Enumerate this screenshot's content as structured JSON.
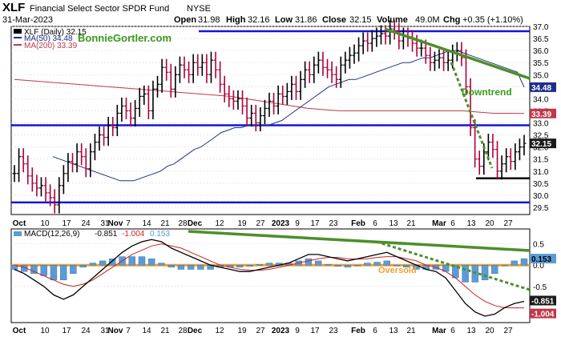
{
  "header": {
    "symbol": "XLF",
    "fund_name": "Financial Select Sector SPDR Fund",
    "exchange": "NYSE",
    "date": "31-Mar-2023",
    "open_label": "Open",
    "open": "31.98",
    "high_label": "High",
    "high": "32.16",
    "low_label": "Low",
    "low": "31.86",
    "close_label": "Close",
    "close": "32.15",
    "volume_label": "Volume",
    "volume": "49.0M",
    "chg_label": "Chg",
    "chg": "+0.35 (+1.10%)"
  },
  "watermark": "BonnieGortler.com",
  "price_legend": {
    "series_label": "XLF (Daily) 32.15",
    "ma50_label": "MA(50) 34.48",
    "ma200_label": "MA(200) 33.39"
  },
  "annotations": {
    "downtrend": "Downtrend",
    "oversold": "Oversold"
  },
  "colors": {
    "up": "#000000",
    "down": "#b0003a",
    "ma50": "#1f2e8a",
    "ma200": "#c0394b",
    "support_lines": "#1414d8",
    "trend_lines": "#4c8f2a",
    "oversold_line": "#f0a030",
    "macd_hist": "#5b9bd5",
    "macd_line": "#000000",
    "signal_line": "#cc2222",
    "label_bg_dark": "#1a1a1a",
    "label_bg_blue": "#1f2e8a",
    "label_bg_red": "#c0394b"
  },
  "chart_data": [
    {
      "type": "ohlc",
      "name": "XLF (Daily)",
      "y_scale": "linear",
      "ylim": [
        29.2,
        37.0
      ],
      "y_ticks": [
        "37.0",
        "36.5",
        "36.0",
        "35.5",
        "35.0",
        "34.5",
        "34.0",
        "33.5",
        "33.0",
        "32.5",
        "32.0",
        "31.5",
        "31.0",
        "30.5",
        "30.0",
        "29.5"
      ],
      "x_tick_labels": [
        "Oct",
        "10",
        "17",
        "24",
        "31",
        "Nov",
        "7",
        "14",
        "21",
        "28",
        "Dec",
        "12",
        "19",
        "27",
        "2023",
        "9",
        "17",
        "23",
        "Feb",
        "6",
        "13",
        "21",
        "Mar",
        "6",
        "13",
        "20",
        "27"
      ],
      "month_labels": [
        "Oct",
        "Nov",
        "Dec",
        "2023",
        "Feb",
        "Mar"
      ],
      "last_value_labels": {
        "close": "32.15",
        "ma50": "34.48",
        "ma200": "33.39"
      },
      "closes": [
        30.9,
        31.6,
        31.3,
        30.8,
        30.5,
        30.3,
        30.4,
        30.1,
        29.9,
        29.6,
        30.4,
        30.9,
        31.4,
        31.3,
        31.8,
        31.6,
        31.1,
        31.8,
        32.2,
        32.5,
        32.4,
        32.9,
        32.8,
        33.4,
        33.7,
        33.5,
        33.2,
        33.6,
        34.1,
        34.2,
        33.5,
        34.4,
        34.6,
        35.3,
        35.1,
        34.4,
        35.0,
        35.4,
        35.2,
        35.0,
        35.5,
        35.3,
        35.5,
        35.0,
        35.6,
        35.2,
        34.6,
        34.2,
        34.0,
        33.9,
        34.0,
        33.7,
        33.2,
        33.4,
        33.0,
        33.3,
        33.6,
        33.9,
        33.7,
        34.2,
        34.1,
        34.3,
        34.6,
        34.3,
        34.8,
        35.2,
        35.0,
        35.4,
        35.6,
        35.3,
        35.2,
        35.0,
        34.8,
        35.4,
        35.6,
        35.8,
        35.9,
        36.2,
        36.4,
        36.3,
        36.5,
        36.6,
        36.7,
        36.6,
        36.9,
        36.8,
        36.4,
        36.6,
        36.5,
        36.3,
        36.1,
        36.1,
        35.8,
        35.5,
        35.6,
        35.7,
        35.5,
        35.6,
        35.9,
        36.0,
        35.7,
        34.5,
        32.8,
        31.5,
        31.2,
        31.8,
        32.2,
        31.9,
        31.0,
        31.3,
        31.6,
        31.4,
        31.8,
        32.0,
        32.15
      ],
      "ma50": [
        31.6,
        31.5,
        31.4,
        31.3,
        31.2,
        31.1,
        31.0,
        30.9,
        30.8,
        30.7,
        30.6,
        30.6,
        30.6,
        30.7,
        30.8,
        30.9,
        31.0,
        31.2,
        31.3,
        31.5,
        31.7,
        31.9,
        32.0,
        32.2,
        32.4,
        32.6,
        32.7,
        32.8,
        32.8,
        32.9,
        32.9,
        32.9,
        32.9,
        33.0,
        33.1,
        33.3,
        33.5,
        33.7,
        33.9,
        34.1,
        34.3,
        34.5,
        34.6,
        34.7,
        34.8,
        34.8,
        34.9,
        35.0,
        35.1,
        35.2,
        35.3,
        35.4,
        35.5,
        35.5,
        35.6,
        35.7,
        35.7,
        35.8,
        35.9,
        36.0,
        36.0,
        35.9,
        35.8,
        35.7,
        35.6,
        35.5,
        35.4,
        35.3,
        35.2,
        35.1,
        34.48
      ],
      "ma200": [
        34.8,
        34.75,
        34.7,
        34.65,
        34.6,
        34.55,
        34.5,
        34.45,
        34.4,
        34.35,
        34.3,
        34.25,
        34.2,
        34.15,
        34.1,
        34.0,
        33.9,
        33.8,
        33.7,
        33.6,
        33.55,
        33.5,
        33.5,
        33.5,
        33.5,
        33.5,
        33.5,
        33.5,
        33.5,
        33.5,
        33.45,
        33.4,
        33.4,
        33.39
      ],
      "support_lines": [
        36.8,
        32.9,
        29.7
      ],
      "consolidation_line": 30.7
    },
    {
      "type": "line",
      "name": "MACD(12,26,9)",
      "legend_title": "MACD(12,26,9)",
      "macd_value": "-0.851",
      "signal_value": "-1.004",
      "hist_value": "0.153",
      "ylim": [
        -1.35,
        0.85
      ],
      "y_ticks": [
        "0.5",
        "0.0",
        "-0.5"
      ],
      "last_value_labels": {
        "hist": "0.153",
        "macd": "-0.851",
        "signal": "-1.004"
      },
      "x_tick_labels": [
        "Oct",
        "10",
        "17",
        "24",
        "31",
        "Nov",
        "7",
        "14",
        "21",
        "28",
        "Dec",
        "12",
        "19",
        "27",
        "2023",
        "9",
        "17",
        "23",
        "Feb",
        "6",
        "13",
        "21",
        "Mar",
        "6",
        "13",
        "20",
        "27"
      ],
      "macd": [
        -0.1,
        -0.2,
        -0.35,
        -0.5,
        -0.7,
        -0.8,
        -0.7,
        -0.5,
        -0.3,
        -0.1,
        0.1,
        0.3,
        0.45,
        0.55,
        0.6,
        0.55,
        0.4,
        0.3,
        0.2,
        0.1,
        0.0,
        -0.05,
        -0.1,
        -0.15,
        -0.15,
        -0.1,
        -0.05,
        0.0,
        0.05,
        0.15,
        0.25,
        0.25,
        0.2,
        0.15,
        0.1,
        0.15,
        0.2,
        0.25,
        0.3,
        0.2,
        0.1,
        0.0,
        -0.1,
        -0.15,
        -0.3,
        -0.6,
        -0.9,
        -1.1,
        -1.2,
        -1.15,
        -1.0,
        -0.9,
        -0.851
      ],
      "signal": [
        0.0,
        -0.05,
        -0.15,
        -0.25,
        -0.35,
        -0.45,
        -0.5,
        -0.45,
        -0.35,
        -0.2,
        -0.05,
        0.1,
        0.25,
        0.35,
        0.45,
        0.5,
        0.45,
        0.4,
        0.3,
        0.2,
        0.1,
        0.0,
        -0.05,
        -0.1,
        -0.12,
        -0.12,
        -0.1,
        -0.05,
        0.0,
        0.05,
        0.1,
        0.15,
        0.18,
        0.18,
        0.15,
        0.14,
        0.15,
        0.18,
        0.2,
        0.2,
        0.15,
        0.1,
        0.0,
        -0.05,
        -0.15,
        -0.3,
        -0.5,
        -0.7,
        -0.85,
        -0.95,
        -1.0,
        -1.004,
        -1.004
      ],
      "histogram": [
        -0.1,
        -0.15,
        -0.2,
        -0.25,
        -0.35,
        -0.35,
        -0.2,
        -0.05,
        0.05,
        0.1,
        0.15,
        0.2,
        0.2,
        0.2,
        0.15,
        0.05,
        -0.05,
        -0.1,
        -0.1,
        -0.1,
        -0.1,
        -0.05,
        -0.05,
        -0.05,
        -0.03,
        0.02,
        0.05,
        0.05,
        0.05,
        0.1,
        0.15,
        0.1,
        0.02,
        -0.03,
        -0.05,
        0.0,
        0.05,
        0.07,
        0.1,
        0.0,
        -0.05,
        -0.1,
        -0.1,
        -0.1,
        -0.15,
        -0.3,
        -0.4,
        -0.4,
        -0.35,
        -0.2,
        0.0,
        0.1,
        0.153
      ],
      "oversold_level": 0.0
    }
  ]
}
